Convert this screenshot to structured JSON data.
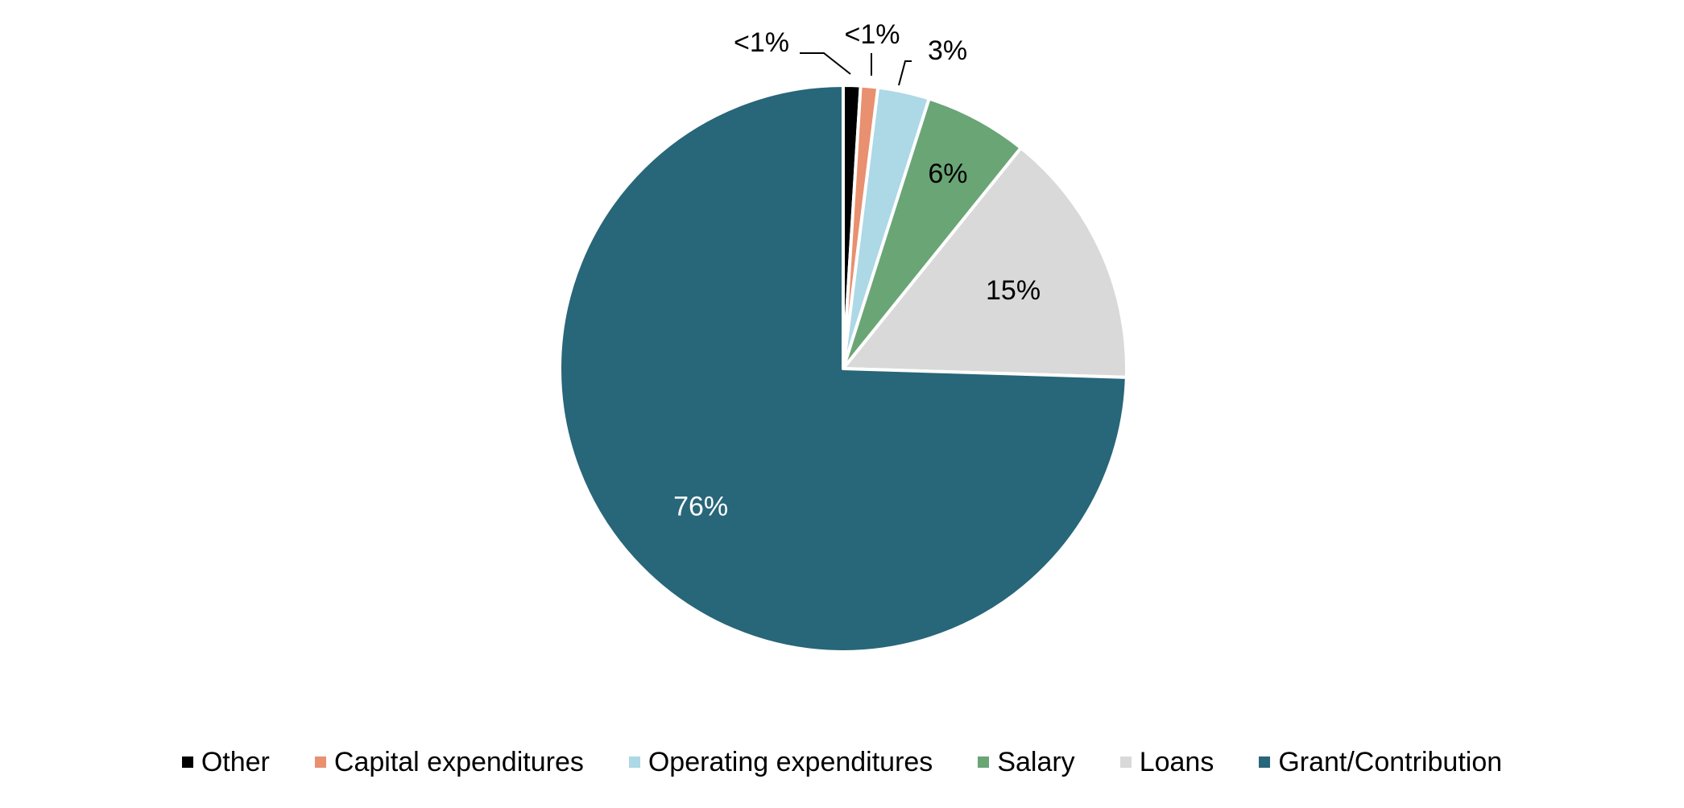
{
  "chart_data": {
    "type": "pie",
    "title": "",
    "start_angle_deg": 0,
    "direction": "clockwise",
    "slices": [
      {
        "name": "Other",
        "value": 1,
        "label": "<1%",
        "color": "#000000",
        "label_color": "#000000"
      },
      {
        "name": "Capital expenditures",
        "value": 1,
        "label": "<1%",
        "color": "#E8906F",
        "label_color": "#000000"
      },
      {
        "name": "Operating expenditures",
        "value": 3,
        "label": "3%",
        "color": "#ADD8E6",
        "label_color": "#000000"
      },
      {
        "name": "Salary",
        "value": 6,
        "label": "6%",
        "color": "#6AA576",
        "label_color": "#000000"
      },
      {
        "name": "Loans",
        "value": 15,
        "label": "15%",
        "color": "#D9D9D9",
        "label_color": "#000000"
      },
      {
        "name": "Grant/Contribution",
        "value": 76,
        "label": "76%",
        "color": "#286679",
        "label_color": "#FFFFFF"
      }
    ],
    "legend": {
      "placement": "bottom",
      "items": [
        "Other",
        "Capital expenditures",
        "Operating expenditures",
        "Salary",
        "Loans",
        "Grant/Contribution"
      ]
    }
  }
}
